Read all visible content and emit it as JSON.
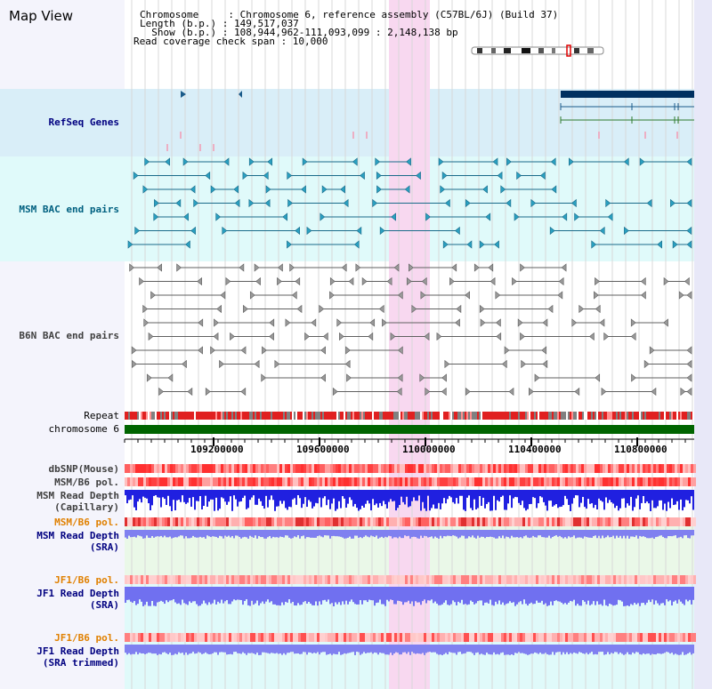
{
  "page": {
    "title": "Map View"
  },
  "info": {
    "chromosome_line": "Chromosome     : Chromosome 6, reference assembly (C57BL/6J) (Build 37)",
    "length_line": "Length (b.p.) : 149,517,037",
    "show_line": "  Show (b.p.) : 108,944,962-111,093,099 : 2,148,138 bp",
    "coverage_line": "Read coverage check span : 10,000"
  },
  "tracks": {
    "refseq": "RefSeq Genes",
    "msm_bac": "MSM BAC end pairs",
    "b6n_bac": "B6N BAC end pairs",
    "repeat": "Repeat",
    "chromosome": "chromosome 6",
    "dbsnp": "dbSNP(Mouse)",
    "msm_b6_pol_1": "MSM/B6 pol.",
    "msm_depth_cap": "MSM Read Depth\n(Capillary)",
    "msm_b6_pol_2": "MSM/B6 pol.",
    "msm_depth_sra": "MSM Read Depth\n(SRA)",
    "jf1_b6_pol_1": "JF1/B6 pol.",
    "jf1_depth_sra": "JF1 Read Depth\n(SRA)",
    "jf1_b6_pol_2": "JF1/B6 pol.",
    "jf1_depth_trim": "JF1 Read Depth\n(SRA trimmed)"
  },
  "axis": {
    "ticks": [
      "109200000",
      "109600000",
      "110000000",
      "110400000",
      "110800000"
    ]
  },
  "colors": {
    "refseq_bg": "#d9eef8",
    "msm_bg": "#e0fafa",
    "highlight": "#f8d8f0",
    "label_navy": "#000080",
    "label_teal": "#006080",
    "label_gray": "#404040",
    "label_orange": "#e08000",
    "chromosome_bar": "#006400"
  }
}
